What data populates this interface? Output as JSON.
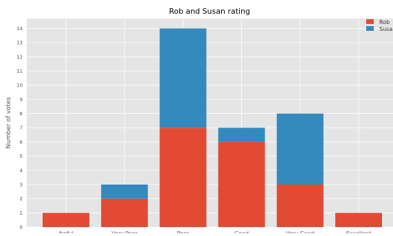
{
  "chart_data": {
    "type": "bar",
    "stacked": true,
    "title": "Rob and Susan rating",
    "xlabel": "",
    "ylabel": "Number of votes",
    "categories": [
      "Awful",
      "Very Poor",
      "Poor",
      "Good",
      "Very Good",
      "Excellent"
    ],
    "series": [
      {
        "name": "Rob",
        "color": "#E24A33",
        "values": [
          1,
          2,
          7,
          6,
          3,
          1
        ]
      },
      {
        "name": "Susan",
        "color": "#348ABD",
        "values": [
          0,
          1,
          7,
          1,
          5,
          0
        ]
      }
    ],
    "ylim": [
      0,
      14.7
    ],
    "yticks": [
      0,
      1,
      2,
      3,
      4,
      5,
      6,
      7,
      8,
      9,
      10,
      11,
      12,
      13,
      14
    ],
    "grid": true,
    "legend_position": "top-right",
    "style": {
      "plot_background": "#E5E5E5",
      "grid_color": "#FFFFFF",
      "tick_label_color": "#555555",
      "title_color": "#000000"
    }
  }
}
